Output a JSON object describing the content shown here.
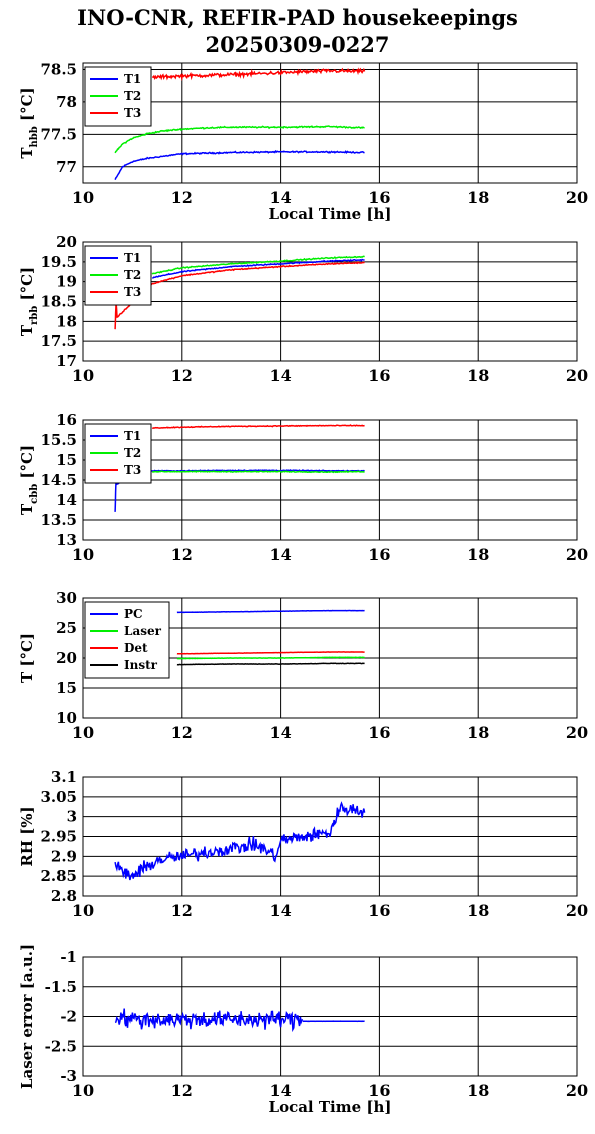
{
  "header": {
    "title": "INO-CNR, REFIR-PAD housekeepings",
    "subtitle": "20250309-0227"
  },
  "colors": {
    "blue": "#0000ff",
    "green": "#00ee00",
    "red": "#ff0000",
    "black": "#000000"
  },
  "chart_data": [
    {
      "type": "line",
      "ylabel_main": "T",
      "ylabel_sub": "hbb",
      "ylabel_unit": "[°C]",
      "xlabel": "Local Time [h]",
      "xlim": [
        10,
        20
      ],
      "ylim": [
        76.75,
        78.6
      ],
      "xticks": [
        10,
        12,
        14,
        16,
        18,
        20
      ],
      "yticks": [
        77,
        77.5,
        78,
        78.5
      ],
      "ytick_labels": [
        "77",
        "77.5",
        "78",
        "78.5"
      ],
      "grid": true,
      "legend_position": "top-left",
      "series": [
        {
          "name": "T1",
          "color": "blue",
          "noise": 0.015,
          "x": [
            10.65,
            10.8,
            11.0,
            11.3,
            11.6,
            12.0,
            12.5,
            13.0,
            14.0,
            15.0,
            15.7
          ],
          "y": [
            76.8,
            77.0,
            77.08,
            77.13,
            77.16,
            77.2,
            77.21,
            77.22,
            77.23,
            77.23,
            77.22
          ]
        },
        {
          "name": "T2",
          "color": "green",
          "noise": 0.015,
          "x": [
            10.65,
            10.8,
            11.0,
            11.3,
            11.6,
            12.0,
            12.5,
            13.0,
            14.0,
            15.0,
            15.7
          ],
          "y": [
            77.22,
            77.35,
            77.44,
            77.51,
            77.55,
            77.58,
            77.6,
            77.61,
            77.61,
            77.62,
            77.6
          ]
        },
        {
          "name": "T3",
          "color": "red",
          "noise": 0.04,
          "x": [
            11.4,
            12.0,
            13.0,
            14.0,
            15.0,
            15.7
          ],
          "y": [
            78.38,
            78.4,
            78.42,
            78.45,
            78.48,
            78.47
          ]
        }
      ]
    },
    {
      "type": "line",
      "ylabel_main": "T",
      "ylabel_sub": "rbb",
      "ylabel_unit": "[°C]",
      "xlabel": "",
      "xlim": [
        10,
        20
      ],
      "ylim": [
        17,
        20
      ],
      "xticks": [
        10,
        12,
        14,
        16,
        18,
        20
      ],
      "yticks": [
        17,
        17.5,
        18,
        18.5,
        19,
        19.5,
        20
      ],
      "ytick_labels": [
        "17",
        "17.5",
        "18",
        "18.5",
        "19",
        "19.5",
        "20"
      ],
      "grid": true,
      "legend_position": "top-left",
      "series": [
        {
          "name": "T1",
          "color": "blue",
          "noise": 0.02,
          "x": [
            11.4,
            12.0,
            13.0,
            14.0,
            15.0,
            15.7
          ],
          "y": [
            19.1,
            19.25,
            19.38,
            19.45,
            19.52,
            19.55
          ]
        },
        {
          "name": "T2",
          "color": "green",
          "noise": 0.02,
          "x": [
            11.4,
            12.0,
            13.0,
            14.0,
            15.0,
            15.7
          ],
          "y": [
            19.2,
            19.35,
            19.45,
            19.52,
            19.6,
            19.63
          ]
        },
        {
          "name": "T3",
          "color": "red",
          "noise": 0.02,
          "x": [
            10.65,
            10.66,
            10.67,
            10.68,
            10.69,
            11.4,
            12.0,
            13.0,
            14.0,
            15.0,
            15.7
          ],
          "y": [
            17.8,
            18.2,
            18.5,
            18.3,
            18.1,
            18.95,
            19.15,
            19.3,
            19.38,
            19.45,
            19.48
          ]
        }
      ]
    },
    {
      "type": "line",
      "ylabel_main": "T",
      "ylabel_sub": "cbb",
      "ylabel_unit": "[°C]",
      "xlabel": "",
      "xlim": [
        10,
        20
      ],
      "ylim": [
        13,
        16
      ],
      "xticks": [
        10,
        12,
        14,
        16,
        18,
        20
      ],
      "yticks": [
        13,
        13.5,
        14,
        14.5,
        15,
        15.5,
        16
      ],
      "ytick_labels": [
        "13",
        "13.5",
        "14",
        "14.5",
        "15",
        "15.5",
        "16"
      ],
      "grid": true,
      "legend_position": "top-left",
      "series": [
        {
          "name": "T1",
          "color": "blue",
          "noise": 0.015,
          "x": [
            10.65,
            10.66,
            10.67,
            10.68,
            11.4,
            12.0,
            13.0,
            14.0,
            15.0,
            15.7
          ],
          "y": [
            13.7,
            14.2,
            14.6,
            14.4,
            14.73,
            14.73,
            14.74,
            14.74,
            14.73,
            14.73
          ]
        },
        {
          "name": "T2",
          "color": "green",
          "noise": 0.015,
          "x": [
            11.4,
            12.0,
            13.0,
            14.0,
            15.0,
            15.7
          ],
          "y": [
            14.71,
            14.71,
            14.71,
            14.71,
            14.7,
            14.71
          ]
        },
        {
          "name": "T3",
          "color": "red",
          "noise": 0.015,
          "x": [
            11.4,
            12.0,
            13.0,
            14.0,
            15.0,
            15.7
          ],
          "y": [
            15.8,
            15.82,
            15.84,
            15.85,
            15.86,
            15.86
          ]
        }
      ]
    },
    {
      "type": "line",
      "ylabel_main": "T [°C]",
      "ylabel_sub": "",
      "ylabel_unit": "",
      "xlabel": "",
      "xlim": [
        10,
        20
      ],
      "ylim": [
        10,
        30
      ],
      "xticks": [
        10,
        12,
        14,
        16,
        18,
        20
      ],
      "yticks": [
        10,
        15,
        20,
        25,
        30
      ],
      "ytick_labels": [
        "10",
        "15",
        "20",
        "25",
        "30"
      ],
      "grid": true,
      "legend_position": "top-left",
      "series": [
        {
          "name": "PC",
          "color": "blue",
          "noise": 0.03,
          "x": [
            11.9,
            13.0,
            14.0,
            15.0,
            15.7
          ],
          "y": [
            27.6,
            27.7,
            27.8,
            27.9,
            27.9
          ]
        },
        {
          "name": "Laser",
          "color": "green",
          "noise": 0.03,
          "x": [
            11.9,
            13.0,
            14.0,
            15.0,
            15.7
          ],
          "y": [
            19.9,
            20.0,
            20.0,
            20.1,
            20.1
          ]
        },
        {
          "name": "Det",
          "color": "red",
          "noise": 0.03,
          "x": [
            11.9,
            13.0,
            14.0,
            15.0,
            15.7
          ],
          "y": [
            20.7,
            20.8,
            20.9,
            21.0,
            21.0
          ]
        },
        {
          "name": "Instr",
          "color": "black",
          "noise": 0.05,
          "x": [
            11.9,
            13.0,
            14.0,
            15.0,
            15.7
          ],
          "y": [
            18.9,
            19.0,
            19.0,
            19.1,
            19.1
          ]
        }
      ]
    },
    {
      "type": "line",
      "ylabel_main": "RH [%]",
      "ylabel_sub": "",
      "ylabel_unit": "",
      "xlabel": "",
      "xlim": [
        10,
        20
      ],
      "ylim": [
        2.8,
        3.1
      ],
      "xticks": [
        10,
        12,
        14,
        16,
        18,
        20
      ],
      "yticks": [
        2.8,
        2.85,
        2.9,
        2.95,
        3.0,
        3.05,
        3.1
      ],
      "ytick_labels": [
        "2.8",
        "2.85",
        "2.9",
        "2.95",
        "3",
        "3.05",
        "3.1"
      ],
      "grid": true,
      "legend_position": "",
      "series": [
        {
          "name": "",
          "color": "blue",
          "noise": 0.025,
          "x": [
            10.65,
            10.8,
            11.0,
            11.5,
            12.0,
            12.5,
            13.0,
            13.5,
            13.9,
            14.0,
            14.5,
            15.0,
            15.2,
            15.4,
            15.7
          ],
          "y": [
            2.88,
            2.86,
            2.85,
            2.89,
            2.9,
            2.91,
            2.92,
            2.93,
            2.9,
            2.94,
            2.95,
            2.96,
            3.02,
            3.02,
            3.01
          ]
        }
      ]
    },
    {
      "type": "line",
      "ylabel_main": "Laser error [a.u.]",
      "ylabel_sub": "",
      "ylabel_unit": "",
      "xlabel": "Local Time [h]",
      "xlim": [
        10,
        20
      ],
      "ylim": [
        -3,
        -1
      ],
      "xticks": [
        10,
        12,
        14,
        16,
        18,
        20
      ],
      "yticks": [
        -3,
        -2.5,
        -2,
        -1.5,
        -1
      ],
      "ytick_labels": [
        "-3",
        "-2.5",
        "-2",
        "-1.5",
        "-1"
      ],
      "grid": true,
      "legend_position": "",
      "series": [
        {
          "name": "",
          "color": "blue",
          "noise": 0.22,
          "x": [
            10.65,
            11.0,
            12.0,
            13.0,
            14.0,
            14.45
          ],
          "y": [
            -2.0,
            -2.05,
            -2.05,
            -2.05,
            -2.05,
            -2.05
          ]
        },
        {
          "name": "",
          "color": "blue",
          "noise": 0.004,
          "x": [
            14.45,
            15.0,
            15.7
          ],
          "y": [
            -2.08,
            -2.08,
            -2.08
          ]
        }
      ]
    }
  ]
}
